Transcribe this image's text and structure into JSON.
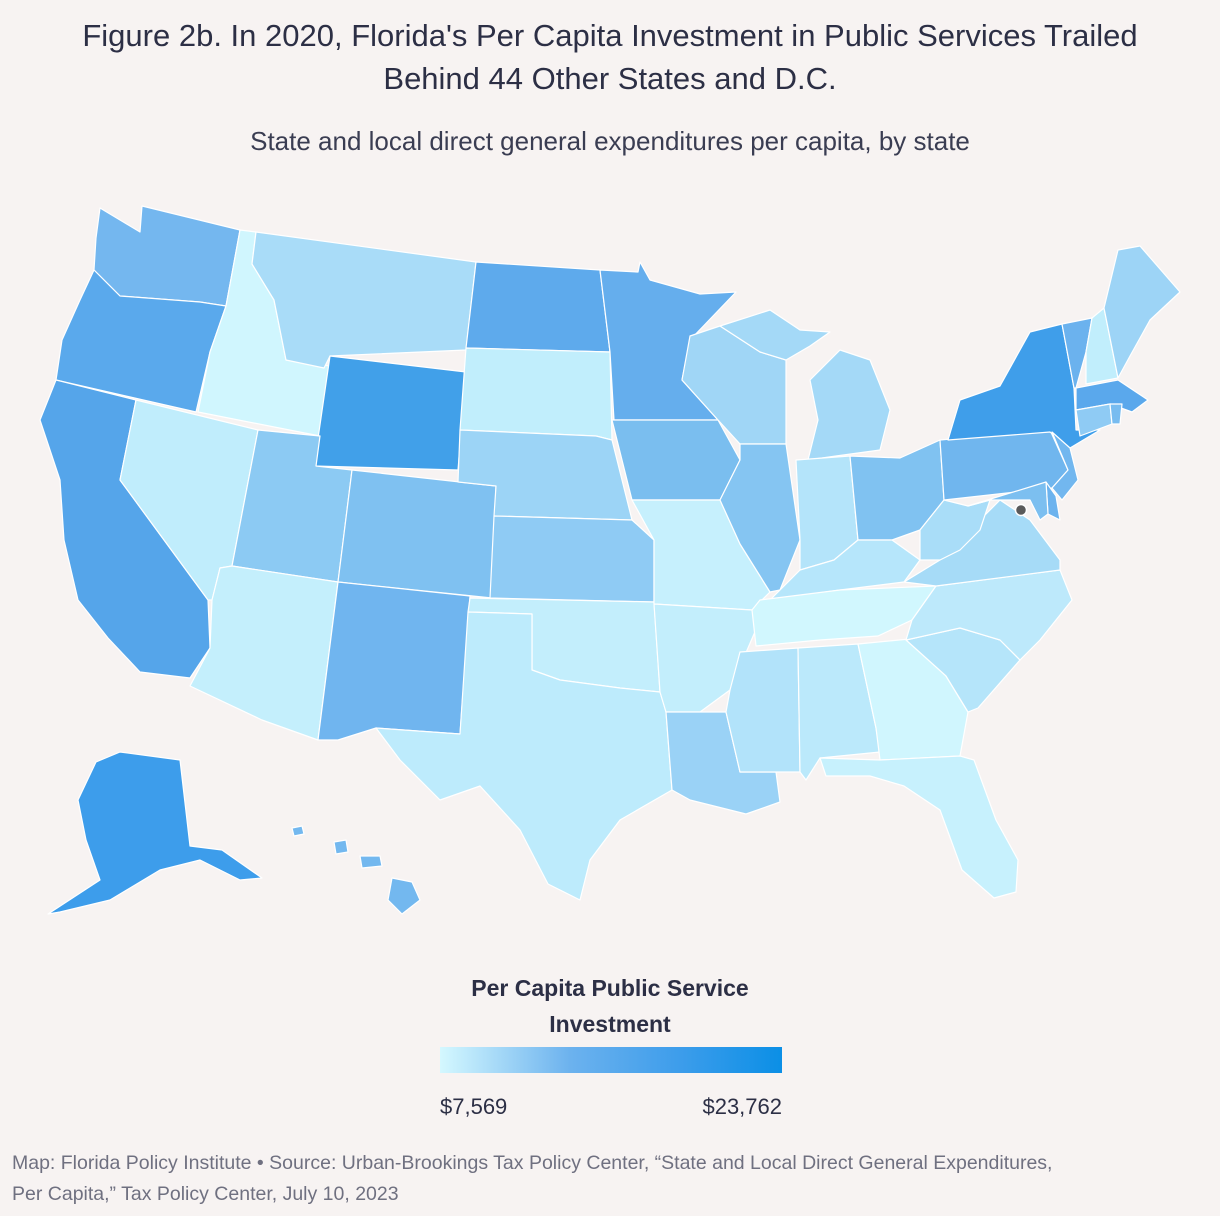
{
  "title_line1": "Figure 2b. In 2020, Florida's Per Capita Investment in Public Services Trailed",
  "title_line2": "Behind 44 Other States and D.C.",
  "subtitle": "State and local direct general expenditures per capita, by state",
  "legend": {
    "title_line1": "Per Capita Public Service",
    "title_line2": "Investment",
    "min_label": "$7,569",
    "max_label": "$23,762",
    "color_low": "#d4f8ff",
    "color_high": "#0b8fe6"
  },
  "source_line1": "Map: Florida Policy Institute • Source: Urban-Brookings Tax Policy Center, “State and Local Direct General Expenditures,",
  "source_line2": "Per Capita,” Tax Policy Center, July 10, 2023",
  "states": {
    "WA": "#74b7ef",
    "OR": "#5aa9ec",
    "CA": "#55a5ea",
    "ID": "#d0f6fe",
    "NV": "#c0edfc",
    "MT": "#a9dcf8",
    "WY": "#41a0e9",
    "UT": "#8ccaf3",
    "CO": "#7fc1f1",
    "AZ": "#c4effc",
    "NM": "#70b5ef",
    "ND": "#5eaaec",
    "SD": "#c1eefc",
    "NE": "#9cd4f6",
    "KS": "#8fcbf4",
    "OK": "#c3eefc",
    "TX": "#bdebfc",
    "MN": "#65aeed",
    "IA": "#7abeef",
    "MO": "#c6f0fd",
    "AR": "#c3eefc",
    "LA": "#9ad2f6",
    "WI": "#a0d6f6",
    "IL": "#85c5f2",
    "MI": "#a4d9f7",
    "IN": "#b4e4fa",
    "OH": "#80c2f1",
    "KY": "#b6e6fb",
    "TN": "#d1f7fe",
    "MS": "#b2e3fa",
    "AL": "#bbe9fb",
    "GA": "#d0f6fe",
    "FL": "#c7f1fd",
    "SC": "#b5e5fa",
    "NC": "#bde9fb",
    "VA": "#a6dbf7",
    "WV": "#a9ddf8",
    "PA": "#70b6ee",
    "NY": "#3f9eea",
    "VT": "#6bb2ee",
    "NH": "#c1eefc",
    "ME": "#9dd4f6",
    "MA": "#5aa8ec",
    "CT": "#8fcbf4",
    "RI": "#78bcf0",
    "NJ": "#72b7ef",
    "DE": "#6cb3ee",
    "MD": "#7cbff0",
    "AK": "#3d9deb",
    "HI": "#73b8ef"
  }
}
